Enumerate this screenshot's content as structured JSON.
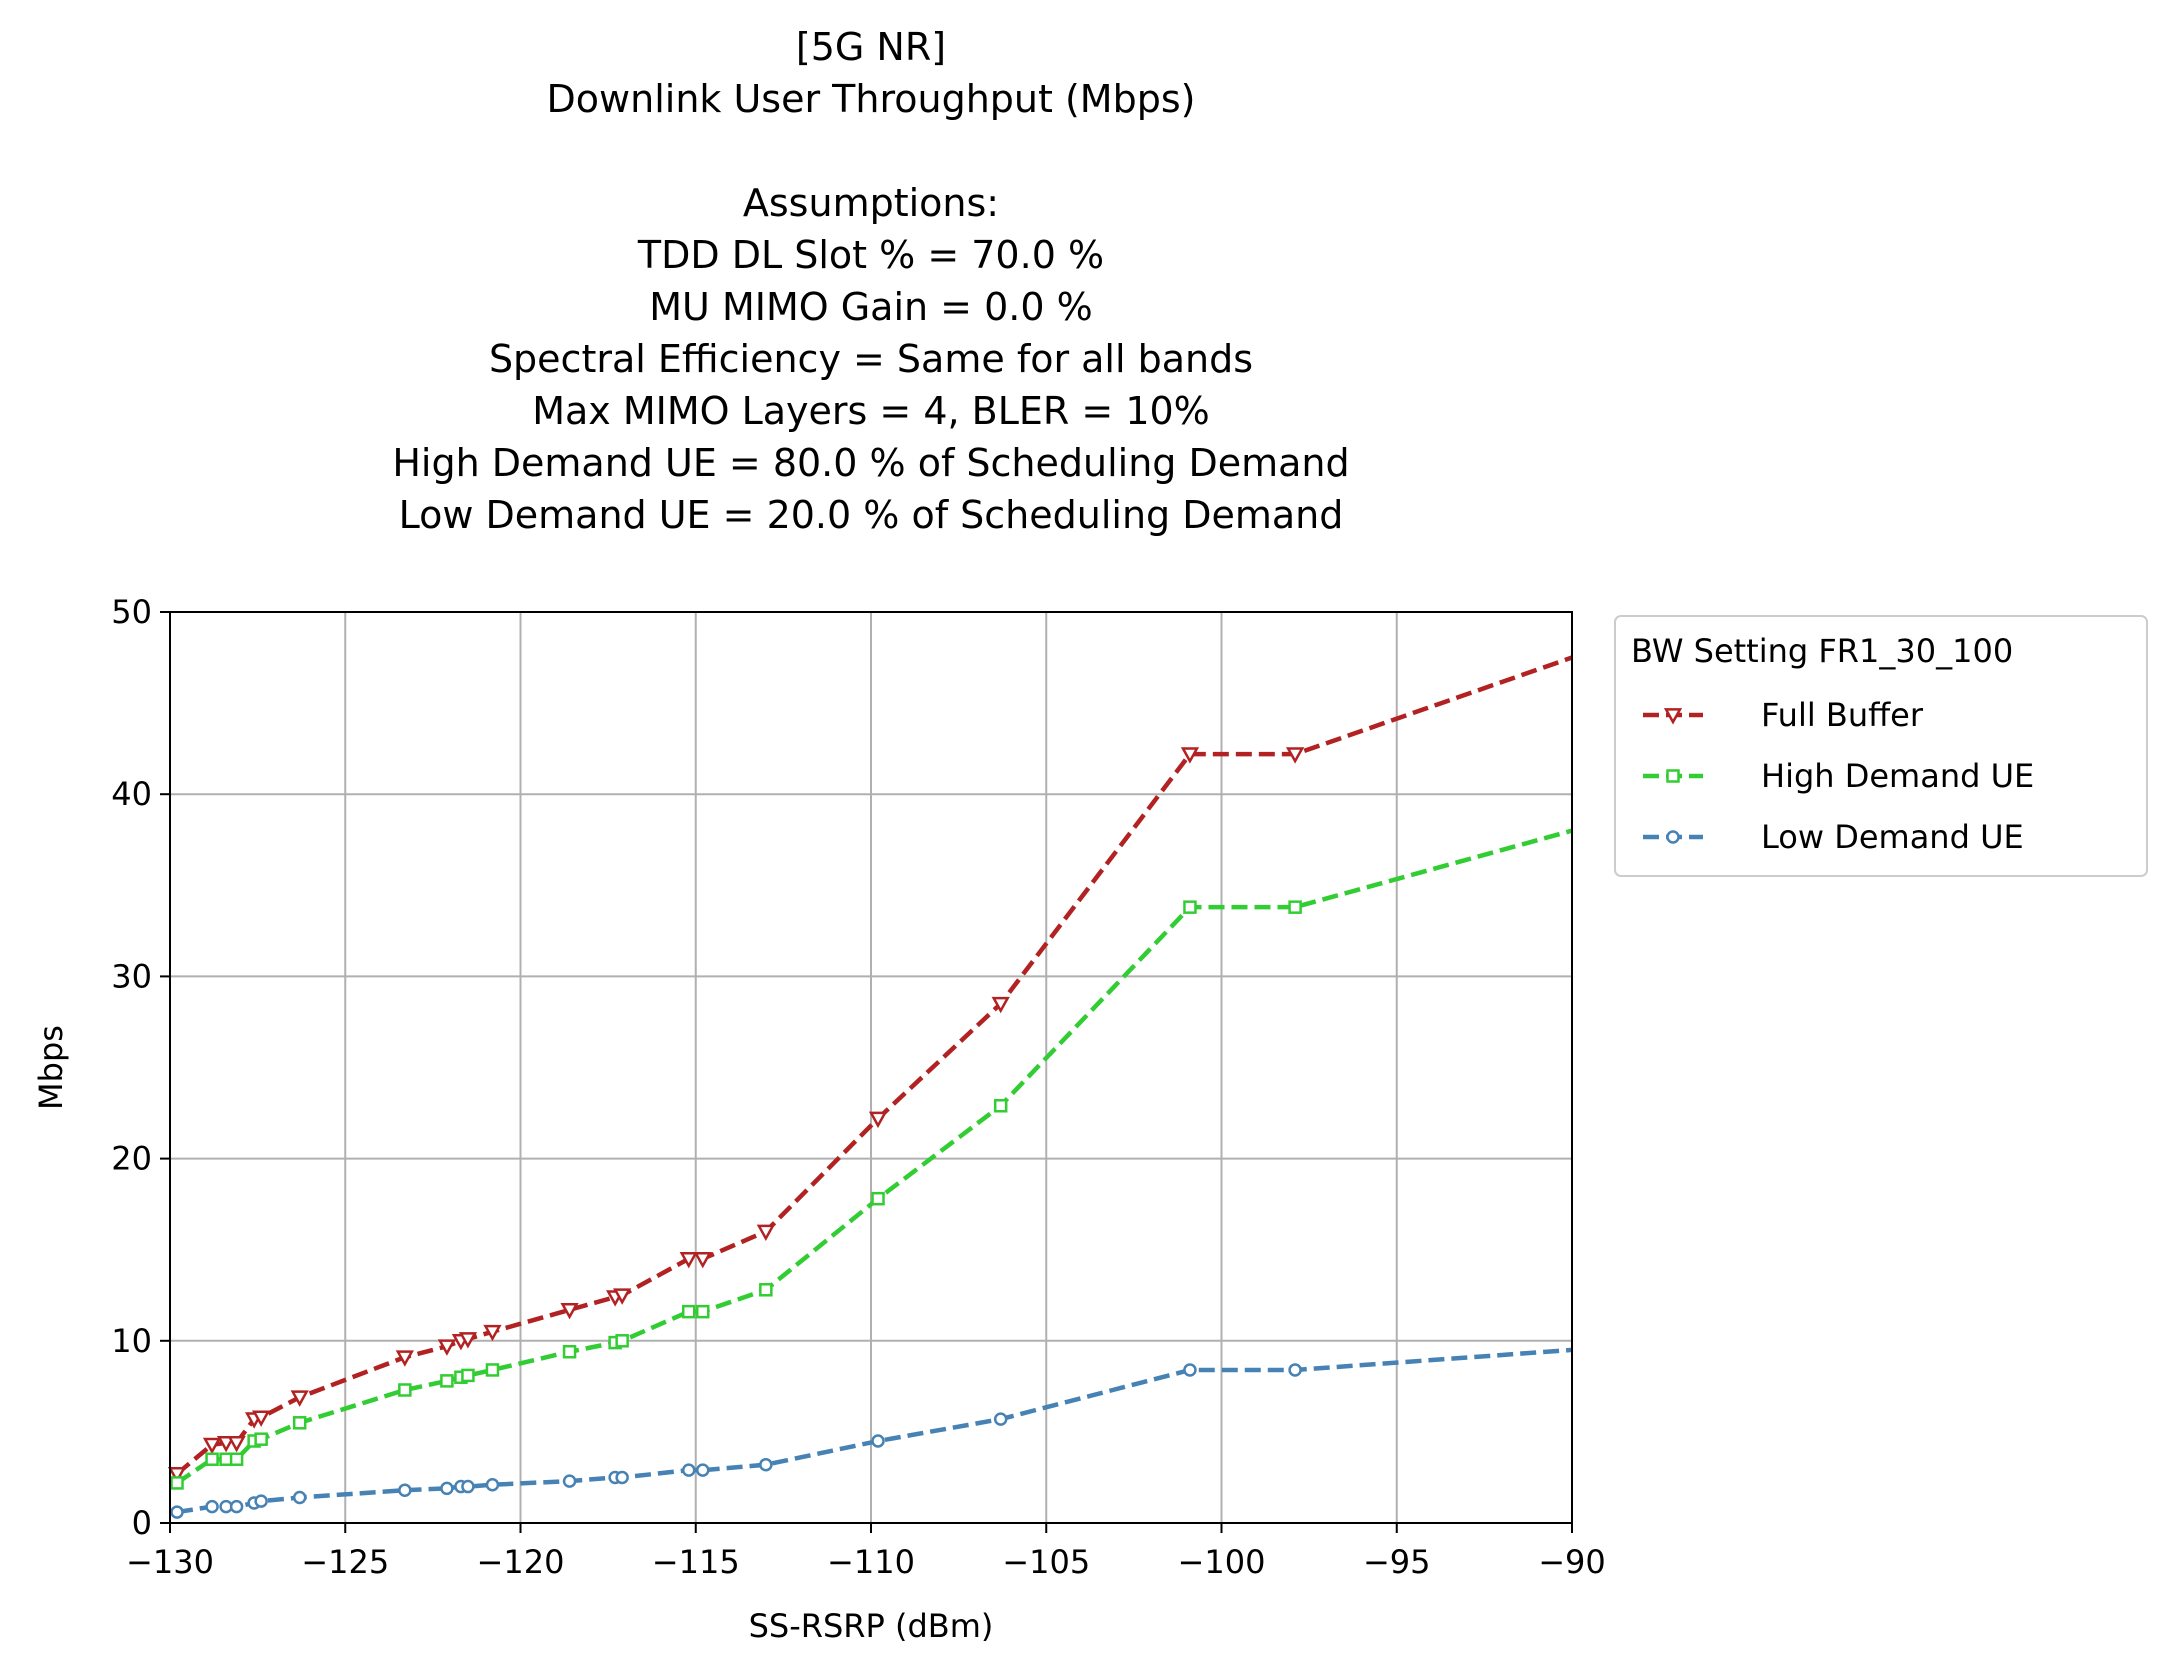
{
  "chart_data": {
    "type": "line",
    "title_lines": [
      "[5G NR]",
      "Downlink User Throughput (Mbps)",
      "",
      "Assumptions:",
      "TDD DL Slot % = 70.0 %",
      "MU MIMO Gain = 0.0 %",
      "Spectral Efficiency = Same for all bands",
      "Max MIMO Layers = 4, BLER = 10%",
      "High Demand UE = 80.0 % of Scheduling Demand",
      "Low Demand UE = 20.0 % of Scheduling Demand"
    ],
    "xlabel": "SS-RSRP (dBm)",
    "ylabel": "Mbps",
    "xlim": [
      -130,
      -90
    ],
    "ylim": [
      0,
      50
    ],
    "xticks": [
      -130,
      -125,
      -120,
      -115,
      -110,
      -105,
      -100,
      -95,
      -90
    ],
    "xtick_labels": [
      "−130",
      "−125",
      "−120",
      "−115",
      "−110",
      "−105",
      "−100",
      "−95",
      "−90"
    ],
    "yticks": [
      0,
      10,
      20,
      30,
      40,
      50
    ],
    "ytick_labels": [
      "0",
      "10",
      "20",
      "30",
      "40",
      "50"
    ],
    "grid": true,
    "legend": {
      "title": "BW Setting FR1_30_100",
      "placement": "outside upper right"
    },
    "x": [
      -129.8,
      -128.8,
      -128.4,
      -128.1,
      -127.6,
      -127.4,
      -126.3,
      -123.3,
      -122.1,
      -121.7,
      -121.5,
      -120.8,
      -118.6,
      -117.3,
      -117.1,
      -115.2,
      -114.8,
      -113.0,
      -109.8,
      -106.3,
      -100.9,
      -97.9,
      -90
    ],
    "series": [
      {
        "name": "Full Buffer",
        "color": "#b22222",
        "marker": "triangle-down",
        "values": [
          2.7,
          4.3,
          4.4,
          4.4,
          5.7,
          5.8,
          6.9,
          9.1,
          9.7,
          10.0,
          10.1,
          10.5,
          11.7,
          12.4,
          12.5,
          14.5,
          14.5,
          16.0,
          22.2,
          28.5,
          42.2,
          42.2,
          47.5
        ]
      },
      {
        "name": "High Demand UE",
        "color": "#32cd32",
        "marker": "square",
        "values": [
          2.2,
          3.5,
          3.5,
          3.5,
          4.5,
          4.6,
          5.5,
          7.3,
          7.8,
          8.0,
          8.1,
          8.4,
          9.4,
          9.9,
          10.0,
          11.6,
          11.6,
          12.8,
          17.8,
          22.9,
          33.8,
          33.8,
          38.0
        ]
      },
      {
        "name": "Low Demand UE",
        "color": "#4682b4",
        "marker": "circle",
        "values": [
          0.6,
          0.9,
          0.9,
          0.9,
          1.1,
          1.2,
          1.4,
          1.8,
          1.9,
          2.0,
          2.0,
          2.1,
          2.3,
          2.5,
          2.5,
          2.9,
          2.9,
          3.2,
          4.5,
          5.7,
          8.4,
          8.4,
          9.5
        ]
      }
    ]
  }
}
